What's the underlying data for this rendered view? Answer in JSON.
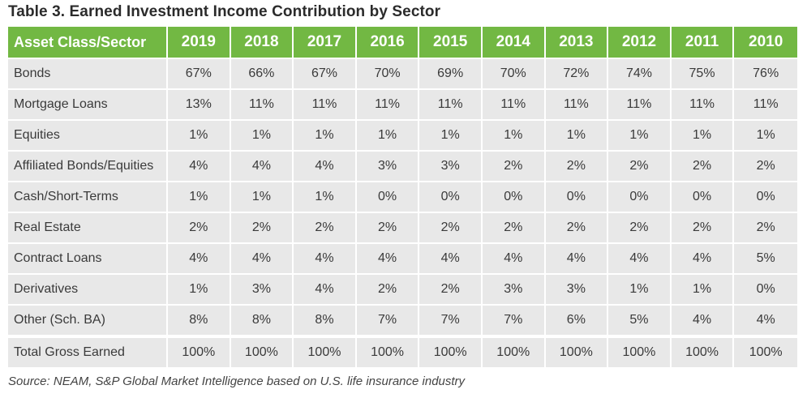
{
  "title": "Table 3. Earned Investment Income Contribution by Sector",
  "table": {
    "headers": [
      "Asset Class/Sector",
      "2019",
      "2018",
      "2017",
      "2016",
      "2015",
      "2014",
      "2013",
      "2012",
      "2011",
      "2010"
    ],
    "rows": [
      {
        "label": "Bonds",
        "values": [
          "67%",
          "66%",
          "67%",
          "70%",
          "69%",
          "70%",
          "72%",
          "74%",
          "75%",
          "76%"
        ]
      },
      {
        "label": "Mortgage Loans",
        "values": [
          "13%",
          "11%",
          "11%",
          "11%",
          "11%",
          "11%",
          "11%",
          "11%",
          "11%",
          "11%"
        ]
      },
      {
        "label": "Equities",
        "values": [
          "1%",
          "1%",
          "1%",
          "1%",
          "1%",
          "1%",
          "1%",
          "1%",
          "1%",
          "1%"
        ]
      },
      {
        "label": "Affiliated Bonds/Equities",
        "values": [
          "4%",
          "4%",
          "4%",
          "3%",
          "3%",
          "2%",
          "2%",
          "2%",
          "2%",
          "2%"
        ]
      },
      {
        "label": "Cash/Short-Terms",
        "values": [
          "1%",
          "1%",
          "1%",
          "0%",
          "0%",
          "0%",
          "0%",
          "0%",
          "0%",
          "0%"
        ]
      },
      {
        "label": "Real Estate",
        "values": [
          "2%",
          "2%",
          "2%",
          "2%",
          "2%",
          "2%",
          "2%",
          "2%",
          "2%",
          "2%"
        ]
      },
      {
        "label": "Contract Loans",
        "values": [
          "4%",
          "4%",
          "4%",
          "4%",
          "4%",
          "4%",
          "4%",
          "4%",
          "4%",
          "5%"
        ]
      },
      {
        "label": "Derivatives",
        "values": [
          "1%",
          "3%",
          "4%",
          "2%",
          "2%",
          "3%",
          "3%",
          "1%",
          "1%",
          "0%"
        ]
      },
      {
        "label": "Other (Sch. BA)",
        "values": [
          "8%",
          "8%",
          "8%",
          "7%",
          "7%",
          "7%",
          "6%",
          "5%",
          "4%",
          "4%"
        ]
      },
      {
        "label": "Total Gross Earned",
        "values": [
          "100%",
          "100%",
          "100%",
          "100%",
          "100%",
          "100%",
          "100%",
          "100%",
          "100%",
          "100%"
        ]
      }
    ]
  },
  "source": "Source: NEAM, S&P Global Market Intelligence based on U.S. life insurance industry"
}
